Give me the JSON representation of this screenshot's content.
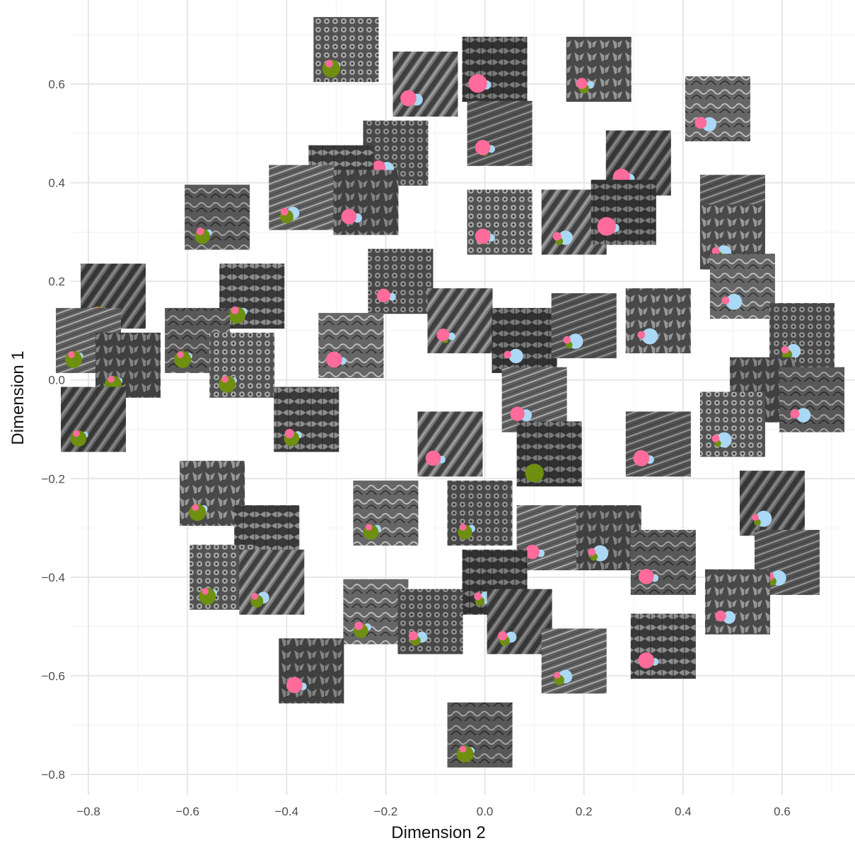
{
  "chart_data": {
    "type": "scatter",
    "xlabel": "Dimension 2",
    "ylabel": "Dimension 1",
    "xlim": [
      -0.83,
      0.73
    ],
    "ylim": [
      -0.81,
      0.73
    ],
    "x_ticks": [
      -0.8,
      -0.6,
      -0.4,
      -0.2,
      0.0,
      0.2,
      0.4,
      0.6
    ],
    "y_ticks": [
      -0.8,
      -0.6,
      -0.4,
      -0.2,
      0.0,
      0.2,
      0.4,
      0.6
    ],
    "x_tick_labels": [
      "−0.8",
      "−0.6",
      "−0.4",
      "−0.2",
      "0.0",
      "0.2",
      "0.4",
      "0.6"
    ],
    "y_tick_labels": [
      "−0.8",
      "−0.6",
      "−0.4",
      "−0.2",
      "0.0",
      "0.2",
      "0.4",
      "0.6"
    ],
    "grid": true,
    "legend": "none",
    "marker": "grayscale texture image thumbnail with pink / light-blue / green circle glyphs (relative sizes)",
    "series_colors": {
      "pink": "#ff6b9a",
      "blue": "#aad8f5",
      "green": "#6e8f10"
    },
    "points": [
      {
        "x": -0.28,
        "y": 0.67,
        "pink": 0.2,
        "blue": 0.1,
        "green": 0.8
      },
      {
        "x": -0.12,
        "y": 0.6,
        "pink": 0.7,
        "blue": 0.45,
        "green": 0.0
      },
      {
        "x": 0.02,
        "y": 0.63,
        "pink": 0.85,
        "blue": 0.3,
        "green": 0.0
      },
      {
        "x": 0.03,
        "y": 0.5,
        "pink": 0.65,
        "blue": 0.2,
        "green": 0.15
      },
      {
        "x": 0.23,
        "y": 0.63,
        "pink": 0.4,
        "blue": 0.2,
        "green": 0.35
      },
      {
        "x": 0.47,
        "y": 0.55,
        "pink": 0.45,
        "blue": 0.6,
        "green": 0.0
      },
      {
        "x": -0.18,
        "y": 0.46,
        "pink": 0.55,
        "blue": 0.55,
        "green": 0.0
      },
      {
        "x": 0.31,
        "y": 0.44,
        "pink": 0.75,
        "blue": 0.3,
        "green": 0.0
      },
      {
        "x": -0.29,
        "y": 0.41,
        "pink": 0.2,
        "blue": 0.35,
        "green": 0.7
      },
      {
        "x": -0.37,
        "y": 0.37,
        "pink": 0.2,
        "blue": 0.5,
        "green": 0.55
      },
      {
        "x": -0.24,
        "y": 0.36,
        "pink": 0.65,
        "blue": 0.3,
        "green": 0.0
      },
      {
        "x": -0.54,
        "y": 0.33,
        "pink": 0.2,
        "blue": 0.15,
        "green": 0.65
      },
      {
        "x": 0.03,
        "y": 0.32,
        "pink": 0.65,
        "blue": 0.2,
        "green": 0.0
      },
      {
        "x": 0.18,
        "y": 0.32,
        "pink": 0.25,
        "blue": 0.6,
        "green": 0.2
      },
      {
        "x": 0.28,
        "y": 0.34,
        "pink": 0.85,
        "blue": 0.25,
        "green": 0.0
      },
      {
        "x": 0.5,
        "y": 0.35,
        "pink": 0.2,
        "blue": 0.7,
        "green": 0.0
      },
      {
        "x": 0.5,
        "y": 0.29,
        "pink": 0.2,
        "blue": 0.6,
        "green": 0.35
      },
      {
        "x": 0.52,
        "y": 0.19,
        "pink": 0.2,
        "blue": 0.7,
        "green": 0.0
      },
      {
        "x": -0.17,
        "y": 0.2,
        "pink": 0.55,
        "blue": 0.2,
        "green": 0.0
      },
      {
        "x": -0.75,
        "y": 0.17,
        "pink": 0.15,
        "blue": 0.2,
        "green": 0.8
      },
      {
        "x": -0.47,
        "y": 0.17,
        "pink": 0.2,
        "blue": 0.2,
        "green": 0.75
      },
      {
        "x": -0.8,
        "y": 0.08,
        "pink": 0.15,
        "blue": 0.15,
        "green": 0.75
      },
      {
        "x": -0.72,
        "y": 0.03,
        "pink": 0.15,
        "blue": 0.1,
        "green": 0.75
      },
      {
        "x": -0.58,
        "y": 0.08,
        "pink": 0.15,
        "blue": 0.15,
        "green": 0.75
      },
      {
        "x": -0.49,
        "y": 0.03,
        "pink": 0.15,
        "blue": 0.15,
        "green": 0.75
      },
      {
        "x": -0.05,
        "y": 0.12,
        "pink": 0.5,
        "blue": 0.2,
        "green": 0.15
      },
      {
        "x": 0.08,
        "y": 0.08,
        "pink": 0.2,
        "blue": 0.6,
        "green": 0.0
      },
      {
        "x": 0.2,
        "y": 0.11,
        "pink": 0.2,
        "blue": 0.65,
        "green": 0.15
      },
      {
        "x": 0.35,
        "y": 0.12,
        "pink": 0.2,
        "blue": 0.7,
        "green": 0.0
      },
      {
        "x": -0.27,
        "y": 0.07,
        "pink": 0.7,
        "blue": 0.2,
        "green": 0.0
      },
      {
        "x": 0.64,
        "y": 0.09,
        "pink": 0.2,
        "blue": 0.6,
        "green": 0.35
      },
      {
        "x": -0.79,
        "y": -0.08,
        "pink": 0.15,
        "blue": 0.15,
        "green": 0.7
      },
      {
        "x": -0.36,
        "y": -0.08,
        "pink": 0.3,
        "blue": 0.2,
        "green": 0.65
      },
      {
        "x": 0.1,
        "y": -0.04,
        "pink": 0.6,
        "blue": 0.45,
        "green": 0.0
      },
      {
        "x": 0.56,
        "y": -0.02,
        "pink": 0.2,
        "blue": 0.85,
        "green": 0.0
      },
      {
        "x": 0.66,
        "y": -0.04,
        "pink": 0.3,
        "blue": 0.6,
        "green": 0.0
      },
      {
        "x": 0.5,
        "y": -0.09,
        "pink": 0.2,
        "blue": 0.65,
        "green": 0.15
      },
      {
        "x": -0.07,
        "y": -0.13,
        "pink": 0.65,
        "blue": 0.2,
        "green": 0.0
      },
      {
        "x": 0.13,
        "y": -0.15,
        "pink": 0.0,
        "blue": 0.0,
        "green": 0.85
      },
      {
        "x": 0.35,
        "y": -0.13,
        "pink": 0.7,
        "blue": 0.25,
        "green": 0.0
      },
      {
        "x": -0.55,
        "y": -0.23,
        "pink": 0.15,
        "blue": 0.2,
        "green": 0.75
      },
      {
        "x": -0.2,
        "y": -0.27,
        "pink": 0.15,
        "blue": 0.2,
        "green": 0.65
      },
      {
        "x": -0.01,
        "y": -0.27,
        "pink": 0.15,
        "blue": 0.2,
        "green": 0.6
      },
      {
        "x": 0.58,
        "y": -0.25,
        "pink": 0.15,
        "blue": 0.7,
        "green": 0.15
      },
      {
        "x": -0.44,
        "y": -0.32,
        "pink": 0.15,
        "blue": 0.2,
        "green": 0.65
      },
      {
        "x": 0.13,
        "y": -0.32,
        "pink": 0.6,
        "blue": 0.2,
        "green": 0.0
      },
      {
        "x": 0.25,
        "y": -0.32,
        "pink": 0.2,
        "blue": 0.7,
        "green": 0.2
      },
      {
        "x": 0.36,
        "y": -0.37,
        "pink": 0.65,
        "blue": 0.2,
        "green": 0.0
      },
      {
        "x": -0.53,
        "y": -0.4,
        "pink": 0.15,
        "blue": 0.15,
        "green": 0.75
      },
      {
        "x": -0.43,
        "y": -0.41,
        "pink": 0.15,
        "blue": 0.45,
        "green": 0.5
      },
      {
        "x": 0.02,
        "y": -0.41,
        "pink": 0.2,
        "blue": 0.5,
        "green": 0.3
      },
      {
        "x": 0.61,
        "y": -0.37,
        "pink": 0.2,
        "blue": 0.65,
        "green": 0.25
      },
      {
        "x": 0.51,
        "y": -0.45,
        "pink": 0.4,
        "blue": 0.5,
        "green": 0.0
      },
      {
        "x": -0.22,
        "y": -0.47,
        "pink": 0.25,
        "blue": 0.2,
        "green": 0.6
      },
      {
        "x": -0.11,
        "y": -0.49,
        "pink": 0.3,
        "blue": 0.4,
        "green": 0.35
      },
      {
        "x": 0.07,
        "y": -0.49,
        "pink": 0.3,
        "blue": 0.4,
        "green": 0.35
      },
      {
        "x": 0.36,
        "y": -0.54,
        "pink": 0.7,
        "blue": 0.2,
        "green": 0.0
      },
      {
        "x": 0.18,
        "y": -0.57,
        "pink": 0.15,
        "blue": 0.55,
        "green": 0.35
      },
      {
        "x": -0.35,
        "y": -0.59,
        "pink": 0.7,
        "blue": 0.2,
        "green": 0.0
      },
      {
        "x": -0.01,
        "y": -0.72,
        "pink": 0.15,
        "blue": 0.15,
        "green": 0.75
      }
    ]
  }
}
